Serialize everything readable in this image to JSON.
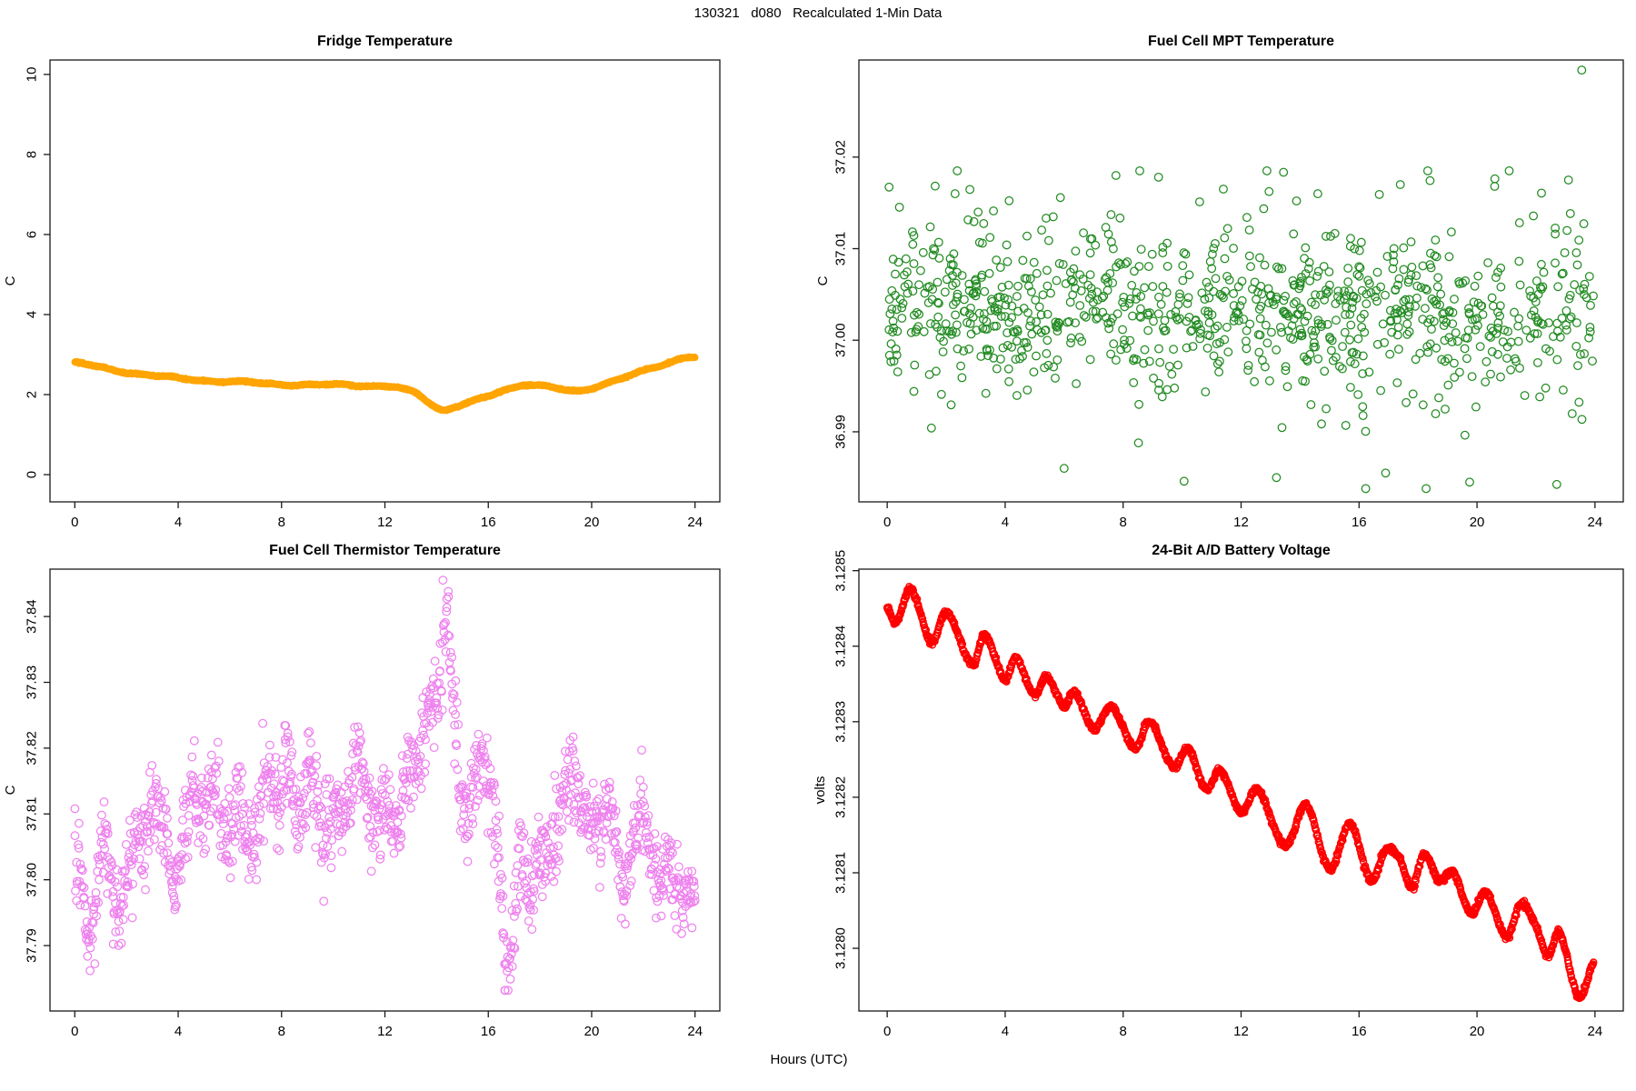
{
  "figure": {
    "title": "130321   d080   Recalculated 1-Min Data",
    "xlabel": "Hours (UTC)"
  },
  "chart_data": [
    {
      "type": "line",
      "panel": "top-left",
      "title": "Fridge Temperature",
      "ylabel": "C",
      "xlabel": "Hours (UTC)",
      "color": "#FFA500",
      "marker": "filled-circle",
      "grid": false,
      "legend": "none",
      "xlim": [
        -0.96,
        24.96
      ],
      "ylim": [
        -0.68,
        10.36
      ],
      "x_ticks": [
        0,
        4,
        8,
        12,
        16,
        20,
        24
      ],
      "x_tick_labels": [
        "0",
        "4",
        "8",
        "12",
        "16",
        "20",
        "24"
      ],
      "y_ticks": [
        0,
        2,
        4,
        6,
        8,
        10
      ],
      "y_tick_labels": [
        "0",
        "2",
        "4",
        "6",
        "8",
        "10"
      ],
      "series": {
        "kind": "keypoint-line",
        "n_points": 1400,
        "seed": 42,
        "noise_sd": 0.009,
        "wobble": [
          [
            0.02,
            3.1,
            0.7
          ],
          [
            0.012,
            1.3,
            2.1
          ]
        ],
        "marker_radius": 3.8,
        "filled": true,
        "keypoints": [
          [
            0,
            2.8
          ],
          [
            0.5,
            2.74
          ],
          [
            1,
            2.68
          ],
          [
            1.5,
            2.62
          ],
          [
            2,
            2.56
          ],
          [
            3,
            2.47
          ],
          [
            4,
            2.41
          ],
          [
            5,
            2.36
          ],
          [
            6,
            2.32
          ],
          [
            7,
            2.29
          ],
          [
            8,
            2.26
          ],
          [
            9,
            2.24
          ],
          [
            10,
            2.24
          ],
          [
            10.5,
            2.25
          ],
          [
            11,
            2.23
          ],
          [
            11.5,
            2.22
          ],
          [
            12,
            2.21
          ],
          [
            12.5,
            2.17
          ],
          [
            12.8,
            2.1
          ],
          [
            13.2,
            2.03
          ],
          [
            13.6,
            1.85
          ],
          [
            14.0,
            1.68
          ],
          [
            14.25,
            1.62
          ],
          [
            14.6,
            1.68
          ],
          [
            15,
            1.76
          ],
          [
            15.5,
            1.85
          ],
          [
            16,
            1.95
          ],
          [
            16.5,
            2.07
          ],
          [
            17,
            2.18
          ],
          [
            17.4,
            2.26
          ],
          [
            17.8,
            2.25
          ],
          [
            18.2,
            2.22
          ],
          [
            18.6,
            2.16
          ],
          [
            19,
            2.1
          ],
          [
            19.4,
            2.07
          ],
          [
            19.8,
            2.12
          ],
          [
            20.2,
            2.21
          ],
          [
            20.7,
            2.32
          ],
          [
            21.2,
            2.43
          ],
          [
            21.7,
            2.52
          ],
          [
            22.2,
            2.62
          ],
          [
            22.7,
            2.72
          ],
          [
            23.1,
            2.82
          ],
          [
            23.5,
            2.92
          ],
          [
            23.8,
            2.96
          ],
          [
            24,
            2.96
          ]
        ]
      }
    },
    {
      "type": "scatter",
      "panel": "top-right",
      "title": "Fuel Cell MPT Temperature",
      "ylabel": "C",
      "xlabel": "Hours (UTC)",
      "color": "#228B22",
      "marker": "open-circle",
      "grid": false,
      "legend": "none",
      "xlim": [
        -0.96,
        24.96
      ],
      "ylim": [
        36.98235,
        37.0306
      ],
      "x_ticks": [
        0,
        4,
        8,
        12,
        16,
        20,
        24
      ],
      "x_tick_labels": [
        "0",
        "4",
        "8",
        "12",
        "16",
        "20",
        "24"
      ],
      "y_ticks": [
        36.99,
        37.0,
        37.01,
        37.02
      ],
      "y_tick_labels": [
        "36.99",
        "37.00",
        "37.01",
        "37.02"
      ],
      "series": {
        "kind": "scatter-cloud",
        "n_points": 950,
        "seed": 7,
        "center": 37.0036,
        "sd_core": 0.004,
        "sd_wide": 0.0066,
        "wide_fraction": 0.25,
        "wave_amp": 0.0006,
        "clamp": [
          36.9838,
          37.0185
        ],
        "marker_radius": 4.3,
        "stroke_width": 1.25
      },
      "outliers": [
        [
          23.55,
          37.0295
        ],
        [
          19.75,
          36.9845
        ],
        [
          13.2,
          36.985
        ],
        [
          6.0,
          36.986
        ],
        [
          16.9,
          36.9855
        ],
        [
          9.2,
          37.0178
        ],
        [
          17.4,
          37.017
        ],
        [
          23.1,
          37.0175
        ],
        [
          2.3,
          37.016
        ],
        [
          11.4,
          37.0165
        ],
        [
          20.6,
          37.0168
        ],
        [
          14.6,
          37.016
        ]
      ]
    },
    {
      "type": "scatter",
      "panel": "bottom-left",
      "title": "Fuel Cell Thermistor Temperature",
      "ylabel": "C",
      "xlabel": "Hours (UTC)",
      "color": "#EE82EE",
      "marker": "open-circle",
      "grid": false,
      "legend": "none",
      "xlim": [
        -0.96,
        24.96
      ],
      "ylim": [
        37.78006,
        37.8472
      ],
      "x_ticks": [
        0,
        4,
        8,
        12,
        16,
        20,
        24
      ],
      "x_tick_labels": [
        "0",
        "4",
        "8",
        "12",
        "16",
        "20",
        "24"
      ],
      "y_ticks": [
        37.79,
        37.8,
        37.81,
        37.82,
        37.83,
        37.84
      ],
      "y_tick_labels": [
        "37.79",
        "37.80",
        "37.81",
        "37.82",
        "37.83",
        "37.84"
      ],
      "series": {
        "kind": "scatter-band",
        "n_points": 1300,
        "seed": 13,
        "noise_sd": 0.0032,
        "wobble": [
          [
            0.0022,
            0.9,
            0.4
          ],
          [
            0.0018,
            2.7,
            1.9
          ]
        ],
        "clamp": [
          37.7832,
          37.846
        ],
        "marker_radius": 4.3,
        "stroke_width": 1.25,
        "mean_path": [
          [
            0,
            37.8
          ],
          [
            0.3,
            37.795
          ],
          [
            0.6,
            37.792
          ],
          [
            0.9,
            37.8
          ],
          [
            1.2,
            37.806
          ],
          [
            1.5,
            37.8
          ],
          [
            1.8,
            37.796
          ],
          [
            2.1,
            37.802
          ],
          [
            2.4,
            37.808
          ],
          [
            2.7,
            37.803
          ],
          [
            3.0,
            37.809
          ],
          [
            3.3,
            37.813
          ],
          [
            3.6,
            37.805
          ],
          [
            3.9,
            37.799
          ],
          [
            4.2,
            37.811
          ],
          [
            4.5,
            37.814
          ],
          [
            4.8,
            37.808
          ],
          [
            5.1,
            37.81
          ],
          [
            5.4,
            37.813
          ],
          [
            5.7,
            37.806
          ],
          [
            6.0,
            37.81
          ],
          [
            6.3,
            37.813
          ],
          [
            6.6,
            37.808
          ],
          [
            7.0,
            37.81
          ],
          [
            7.4,
            37.814
          ],
          [
            7.8,
            37.811
          ],
          [
            8.2,
            37.815
          ],
          [
            8.6,
            37.81
          ],
          [
            9.0,
            37.817
          ],
          [
            9.4,
            37.812
          ],
          [
            9.8,
            37.809
          ],
          [
            10.2,
            37.808
          ],
          [
            10.6,
            37.812
          ],
          [
            11.0,
            37.815
          ],
          [
            11.4,
            37.813
          ],
          [
            11.8,
            37.81
          ],
          [
            12.2,
            37.813
          ],
          [
            12.6,
            37.81
          ],
          [
            13.0,
            37.817
          ],
          [
            13.4,
            37.82
          ],
          [
            13.8,
            37.824
          ],
          [
            14.1,
            37.832
          ],
          [
            14.35,
            37.841
          ],
          [
            14.6,
            37.83
          ],
          [
            14.9,
            37.816
          ],
          [
            15.2,
            37.81
          ],
          [
            15.5,
            37.813
          ],
          [
            15.8,
            37.818
          ],
          [
            16.1,
            37.812
          ],
          [
            16.4,
            37.8
          ],
          [
            16.7,
            37.787
          ],
          [
            17.0,
            37.795
          ],
          [
            17.3,
            37.803
          ],
          [
            17.6,
            37.8
          ],
          [
            17.9,
            37.804
          ],
          [
            18.2,
            37.801
          ],
          [
            18.5,
            37.806
          ],
          [
            18.8,
            37.81
          ],
          [
            19.1,
            37.814
          ],
          [
            19.4,
            37.816
          ],
          [
            19.7,
            37.812
          ],
          [
            20.0,
            37.808
          ],
          [
            20.3,
            37.811
          ],
          [
            20.6,
            37.813
          ],
          [
            20.9,
            37.806
          ],
          [
            21.2,
            37.799
          ],
          [
            21.5,
            37.803
          ],
          [
            21.8,
            37.807
          ],
          [
            22.1,
            37.81
          ],
          [
            22.4,
            37.803
          ],
          [
            22.7,
            37.801
          ],
          [
            23.0,
            37.806
          ],
          [
            23.3,
            37.8
          ],
          [
            23.6,
            37.795
          ],
          [
            23.8,
            37.798
          ],
          [
            24,
            37.8
          ]
        ]
      }
    },
    {
      "type": "line",
      "panel": "bottom-right",
      "title": "24-Bit A/D Battery Voltage",
      "ylabel": "volts",
      "xlabel": "Hours (UTC)",
      "color": "#FF0000",
      "marker": "open-circle",
      "grid": false,
      "legend": "none",
      "xlim": [
        -0.96,
        24.96
      ],
      "ylim": [
        3.127917,
        3.128502
      ],
      "x_ticks": [
        0,
        4,
        8,
        12,
        16,
        20,
        24
      ],
      "x_tick_labels": [
        "0",
        "4",
        "8",
        "12",
        "16",
        "20",
        "24"
      ],
      "y_ticks": [
        3.128,
        3.1281,
        3.1282,
        3.1283,
        3.1284,
        3.1285
      ],
      "y_tick_labels": [
        "3.1280",
        "3.1281",
        "3.1282",
        "3.1283",
        "3.1284",
        "3.1285"
      ],
      "series": {
        "kind": "keypoint-line",
        "n_points": 1440,
        "seed": 99,
        "noise_sd": 1.8e-06,
        "wobble": [],
        "marker_radius": 3.5,
        "filled": false,
        "stroke_width": 1.5,
        "keypoints": [
          [
            0,
            3.12845
          ],
          [
            0.3,
            3.128432
          ],
          [
            0.8,
            3.128475
          ],
          [
            1.5,
            3.128405
          ],
          [
            2.0,
            3.128445
          ],
          [
            2.9,
            3.128375
          ],
          [
            3.3,
            3.128415
          ],
          [
            4.0,
            3.128355
          ],
          [
            4.35,
            3.128385
          ],
          [
            5.0,
            3.128335
          ],
          [
            5.4,
            3.12836
          ],
          [
            6.0,
            3.12832
          ],
          [
            6.35,
            3.12834
          ],
          [
            7.0,
            3.12829
          ],
          [
            7.6,
            3.12832
          ],
          [
            8.4,
            3.128265
          ],
          [
            8.9,
            3.1283
          ],
          [
            9.7,
            3.12824
          ],
          [
            10.2,
            3.128265
          ],
          [
            10.8,
            3.12821
          ],
          [
            11.3,
            3.128235
          ],
          [
            12.0,
            3.12818
          ],
          [
            12.55,
            3.12821
          ],
          [
            13.5,
            3.128135
          ],
          [
            14.2,
            3.12819
          ],
          [
            15.0,
            3.128105
          ],
          [
            15.7,
            3.128165
          ],
          [
            16.4,
            3.12809
          ],
          [
            16.9,
            3.12813
          ],
          [
            17.35,
            3.12812
          ],
          [
            17.8,
            3.12808
          ],
          [
            18.2,
            3.128125
          ],
          [
            18.7,
            3.12809
          ],
          [
            19.2,
            3.1281
          ],
          [
            19.8,
            3.128045
          ],
          [
            20.3,
            3.128075
          ],
          [
            21.0,
            3.128015
          ],
          [
            21.5,
            3.12806
          ],
          [
            22.0,
            3.12803
          ],
          [
            22.4,
            3.12799
          ],
          [
            22.8,
            3.12802
          ],
          [
            23.45,
            3.127935
          ],
          [
            23.95,
            3.12798
          ]
        ]
      }
    }
  ]
}
